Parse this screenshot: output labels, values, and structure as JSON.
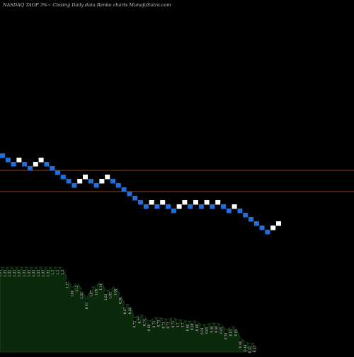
{
  "title": "NASDAQ TAOP 3%~  Closing Daily data  Renko  charts MunafaSutra.com",
  "colors": {
    "background": "#000000",
    "down_brick": "#1f6fe0",
    "up_brick": "#ffffff",
    "ref_line": "#8a4a22",
    "volume_fill": "#0b2a0b",
    "volume_stroke": "#2a5a2a",
    "volume_bar": "#000000"
  },
  "chart_data": [
    {
      "type": "renko",
      "reference_lines": [
        1,
        2
      ],
      "bricks": [
        {
          "dir": "down",
          "level": 0
        },
        {
          "dir": "down",
          "level": -1
        },
        {
          "dir": "down",
          "level": -2
        },
        {
          "dir": "up",
          "level": -1
        },
        {
          "dir": "down",
          "level": -2
        },
        {
          "dir": "down",
          "level": -3
        },
        {
          "dir": "up",
          "level": -2
        },
        {
          "dir": "up",
          "level": -1
        },
        {
          "dir": "down",
          "level": -2
        },
        {
          "dir": "down",
          "level": -3
        },
        {
          "dir": "down",
          "level": -4
        },
        {
          "dir": "down",
          "level": -5
        },
        {
          "dir": "down",
          "level": -6
        },
        {
          "dir": "down",
          "level": -7
        },
        {
          "dir": "up",
          "level": -6
        },
        {
          "dir": "up",
          "level": -5
        },
        {
          "dir": "down",
          "level": -6
        },
        {
          "dir": "down",
          "level": -7
        },
        {
          "dir": "up",
          "level": -6
        },
        {
          "dir": "up",
          "level": -5
        },
        {
          "dir": "down",
          "level": -6
        },
        {
          "dir": "down",
          "level": -7
        },
        {
          "dir": "down",
          "level": -8
        },
        {
          "dir": "down",
          "level": -9
        },
        {
          "dir": "down",
          "level": -10
        },
        {
          "dir": "down",
          "level": -11
        },
        {
          "dir": "down",
          "level": -12
        },
        {
          "dir": "up",
          "level": -11
        },
        {
          "dir": "down",
          "level": -12
        },
        {
          "dir": "up",
          "level": -11
        },
        {
          "dir": "down",
          "level": -12
        },
        {
          "dir": "down",
          "level": -13
        },
        {
          "dir": "up",
          "level": -12
        },
        {
          "dir": "up",
          "level": -11
        },
        {
          "dir": "down",
          "level": -12
        },
        {
          "dir": "up",
          "level": -11
        },
        {
          "dir": "down",
          "level": -12
        },
        {
          "dir": "up",
          "level": -11
        },
        {
          "dir": "down",
          "level": -12
        },
        {
          "dir": "up",
          "level": -11
        },
        {
          "dir": "down",
          "level": -12
        },
        {
          "dir": "down",
          "level": -13
        },
        {
          "dir": "up",
          "level": -12
        },
        {
          "dir": "down",
          "level": -13
        },
        {
          "dir": "down",
          "level": -14
        },
        {
          "dir": "down",
          "level": -15
        },
        {
          "dir": "down",
          "level": -16
        },
        {
          "dir": "down",
          "level": -17
        },
        {
          "dir": "down",
          "level": -18
        },
        {
          "dir": "up",
          "level": -17
        },
        {
          "dir": "up",
          "level": -16
        }
      ]
    },
    {
      "type": "area",
      "labels": [
        "1.33",
        "1.33",
        "1.32",
        "1.33",
        "1.33",
        "1.33",
        "1.33",
        "1.33",
        "1.33",
        "1.33",
        "1.32",
        "1.3",
        "1.3",
        "1.3",
        "1.17",
        "1.06",
        "1.12",
        "1.05",
        "0.93",
        "1.07",
        "1.09",
        "1.14",
        "1.02",
        "1.03",
        "1.06",
        "0.98",
        "0.87",
        "0.88",
        "0.72",
        "0.77",
        "0.74",
        "0.68",
        "0.72",
        "0.73",
        "0.71",
        "0.71",
        "0.72",
        "0.7",
        "0.7",
        "0.68",
        "0.69",
        "0.68",
        "0.64",
        "0.65",
        "0.66",
        "0.66",
        "0.65",
        "0.58",
        "0.63",
        "0.65",
        "0.48",
        "0.44",
        "0.42",
        "0.43"
      ],
      "volume": [
        1.0,
        1.0,
        1.0,
        1.0,
        1.0,
        1.0,
        1.0,
        1.0,
        1.0,
        1.0,
        1.0,
        1.0,
        1.0,
        1.0,
        0.86,
        0.76,
        0.82,
        0.74,
        0.62,
        0.76,
        0.78,
        0.84,
        0.72,
        0.74,
        0.78,
        0.68,
        0.56,
        0.56,
        0.4,
        0.45,
        0.42,
        0.36,
        0.4,
        0.41,
        0.39,
        0.39,
        0.4,
        0.38,
        0.38,
        0.36,
        0.37,
        0.36,
        0.32,
        0.33,
        0.34,
        0.34,
        0.33,
        0.26,
        0.3,
        0.3,
        0.16,
        0.12,
        0.1,
        0.11
      ]
    }
  ]
}
